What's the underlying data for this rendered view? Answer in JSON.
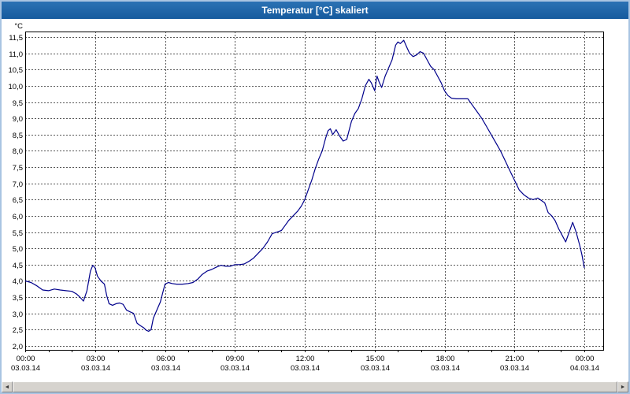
{
  "window": {
    "title": "Temperatur [°C] skaliert"
  },
  "chart_data": {
    "type": "line",
    "title": "Temperatur [°C] skaliert",
    "xlabel": "",
    "ylabel": "°C",
    "ylim": [
      2.0,
      11.5
    ],
    "ytick_step": 0.5,
    "y_tick_labels": [
      "11,5",
      "11,0",
      "10,5",
      "10,0",
      "9,5",
      "9,0",
      "8,5",
      "8,0",
      "7,5",
      "7,0",
      "6,5",
      "6,0",
      "5,5",
      "5,0",
      "4,5",
      "4,0",
      "3,5",
      "3,0",
      "2,5",
      "2,0"
    ],
    "xlim_hours": [
      0,
      24
    ],
    "x_ticks": [
      {
        "hour": 0,
        "time": "00:00",
        "date": "03.03.14"
      },
      {
        "hour": 3,
        "time": "03:00",
        "date": "03.03.14"
      },
      {
        "hour": 6,
        "time": "06:00",
        "date": "03.03.14"
      },
      {
        "hour": 9,
        "time": "09:00",
        "date": "03.03.14"
      },
      {
        "hour": 12,
        "time": "12:00",
        "date": "03.03.14"
      },
      {
        "hour": 15,
        "time": "15:00",
        "date": "03.03.14"
      },
      {
        "hour": 18,
        "time": "18:00",
        "date": "03.03.14"
      },
      {
        "hour": 21,
        "time": "21:00",
        "date": "03.03.14"
      },
      {
        "hour": 24,
        "time": "00:00",
        "date": "04.03.14"
      }
    ],
    "grid": "dashed",
    "legend": "none",
    "line_color": "#00008b",
    "series": [
      {
        "name": "Temperatur [°C]",
        "color": "#00008b",
        "points": [
          [
            0,
            4.0
          ],
          [
            0.25,
            3.95
          ],
          [
            0.5,
            3.85
          ],
          [
            0.75,
            3.72
          ],
          [
            1.0,
            3.7
          ],
          [
            1.25,
            3.75
          ],
          [
            1.5,
            3.72
          ],
          [
            1.75,
            3.7
          ],
          [
            2.0,
            3.68
          ],
          [
            2.2,
            3.6
          ],
          [
            2.35,
            3.5
          ],
          [
            2.5,
            3.38
          ],
          [
            2.65,
            3.7
          ],
          [
            2.8,
            4.3
          ],
          [
            2.9,
            4.48
          ],
          [
            3.0,
            4.4
          ],
          [
            3.1,
            4.15
          ],
          [
            3.25,
            4.0
          ],
          [
            3.4,
            3.9
          ],
          [
            3.5,
            3.55
          ],
          [
            3.6,
            3.3
          ],
          [
            3.75,
            3.25
          ],
          [
            3.9,
            3.3
          ],
          [
            4.05,
            3.32
          ],
          [
            4.2,
            3.28
          ],
          [
            4.35,
            3.1
          ],
          [
            4.5,
            3.05
          ],
          [
            4.65,
            3.0
          ],
          [
            4.8,
            2.7
          ],
          [
            4.95,
            2.62
          ],
          [
            5.1,
            2.55
          ],
          [
            5.2,
            2.48
          ],
          [
            5.3,
            2.45
          ],
          [
            5.4,
            2.5
          ],
          [
            5.5,
            2.85
          ],
          [
            5.65,
            3.1
          ],
          [
            5.8,
            3.35
          ],
          [
            6.0,
            3.9
          ],
          [
            6.15,
            3.95
          ],
          [
            6.3,
            3.92
          ],
          [
            6.5,
            3.9
          ],
          [
            6.75,
            3.9
          ],
          [
            7.0,
            3.92
          ],
          [
            7.2,
            3.95
          ],
          [
            7.4,
            4.05
          ],
          [
            7.6,
            4.2
          ],
          [
            7.8,
            4.3
          ],
          [
            8.0,
            4.35
          ],
          [
            8.2,
            4.42
          ],
          [
            8.4,
            4.48
          ],
          [
            8.6,
            4.45
          ],
          [
            8.8,
            4.45
          ],
          [
            9.0,
            4.5
          ],
          [
            9.2,
            4.5
          ],
          [
            9.4,
            4.52
          ],
          [
            9.6,
            4.6
          ],
          [
            9.8,
            4.7
          ],
          [
            10.0,
            4.85
          ],
          [
            10.2,
            5.0
          ],
          [
            10.4,
            5.2
          ],
          [
            10.6,
            5.45
          ],
          [
            10.8,
            5.5
          ],
          [
            11.0,
            5.55
          ],
          [
            11.15,
            5.7
          ],
          [
            11.3,
            5.85
          ],
          [
            11.5,
            6.0
          ],
          [
            11.7,
            6.15
          ],
          [
            11.85,
            6.3
          ],
          [
            12.0,
            6.5
          ],
          [
            12.15,
            6.8
          ],
          [
            12.3,
            7.1
          ],
          [
            12.45,
            7.45
          ],
          [
            12.6,
            7.75
          ],
          [
            12.75,
            8.0
          ],
          [
            12.9,
            8.4
          ],
          [
            13.0,
            8.62
          ],
          [
            13.1,
            8.68
          ],
          [
            13.2,
            8.5
          ],
          [
            13.35,
            8.65
          ],
          [
            13.5,
            8.45
          ],
          [
            13.65,
            8.3
          ],
          [
            13.8,
            8.35
          ],
          [
            14.0,
            8.9
          ],
          [
            14.15,
            9.15
          ],
          [
            14.3,
            9.3
          ],
          [
            14.45,
            9.6
          ],
          [
            14.6,
            10.0
          ],
          [
            14.75,
            10.2
          ],
          [
            14.85,
            10.1
          ],
          [
            15.0,
            9.85
          ],
          [
            15.1,
            10.3
          ],
          [
            15.2,
            10.1
          ],
          [
            15.3,
            9.95
          ],
          [
            15.45,
            10.3
          ],
          [
            15.6,
            10.55
          ],
          [
            15.75,
            10.8
          ],
          [
            15.9,
            11.25
          ],
          [
            16.0,
            11.35
          ],
          [
            16.1,
            11.3
          ],
          [
            16.25,
            11.4
          ],
          [
            16.4,
            11.15
          ],
          [
            16.5,
            11.0
          ],
          [
            16.65,
            10.9
          ],
          [
            16.8,
            10.95
          ],
          [
            16.95,
            11.05
          ],
          [
            17.1,
            11.0
          ],
          [
            17.25,
            10.8
          ],
          [
            17.4,
            10.6
          ],
          [
            17.55,
            10.5
          ],
          [
            17.7,
            10.3
          ],
          [
            17.85,
            10.1
          ],
          [
            18.0,
            9.85
          ],
          [
            18.15,
            9.7
          ],
          [
            18.3,
            9.62
          ],
          [
            18.5,
            9.6
          ],
          [
            18.75,
            9.6
          ],
          [
            19.0,
            9.6
          ],
          [
            19.2,
            9.4
          ],
          [
            19.4,
            9.2
          ],
          [
            19.6,
            9.0
          ],
          [
            19.8,
            8.75
          ],
          [
            20.0,
            8.5
          ],
          [
            20.2,
            8.25
          ],
          [
            20.4,
            8.0
          ],
          [
            20.6,
            7.7
          ],
          [
            20.8,
            7.4
          ],
          [
            21.0,
            7.1
          ],
          [
            21.2,
            6.8
          ],
          [
            21.4,
            6.65
          ],
          [
            21.6,
            6.55
          ],
          [
            21.8,
            6.5
          ],
          [
            22.0,
            6.55
          ],
          [
            22.1,
            6.5
          ],
          [
            22.3,
            6.4
          ],
          [
            22.45,
            6.1
          ],
          [
            22.6,
            6.0
          ],
          [
            22.75,
            5.85
          ],
          [
            22.9,
            5.6
          ],
          [
            23.05,
            5.4
          ],
          [
            23.2,
            5.2
          ],
          [
            23.35,
            5.5
          ],
          [
            23.5,
            5.8
          ],
          [
            23.65,
            5.5
          ],
          [
            23.8,
            5.1
          ],
          [
            23.9,
            4.8
          ],
          [
            24.0,
            4.4
          ]
        ]
      }
    ]
  },
  "scrollbar": {
    "left_arrow": "◄",
    "right_arrow": "►"
  }
}
